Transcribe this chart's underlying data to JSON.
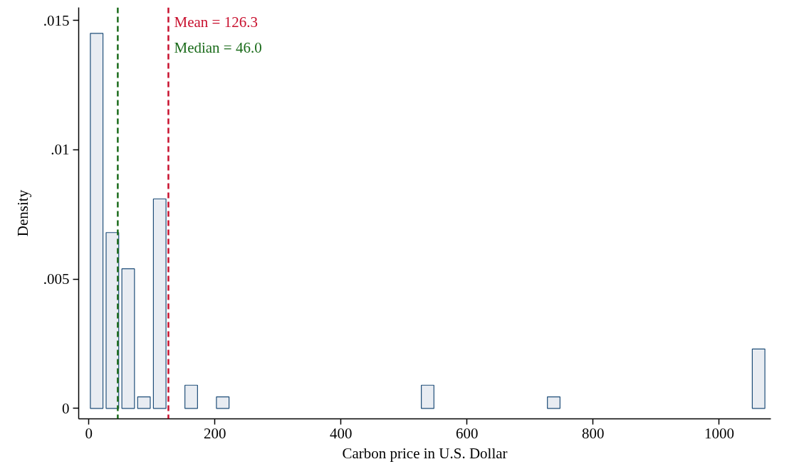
{
  "chart_data": {
    "type": "histogram",
    "xlabel": "Carbon price in U.S. Dollar",
    "ylabel": "Density",
    "bins": [
      0,
      25,
      50,
      75,
      100,
      125,
      150,
      175,
      200,
      225,
      250,
      275,
      300,
      325,
      350,
      375,
      400,
      425,
      450,
      475,
      500,
      525,
      550,
      575,
      600,
      625,
      650,
      675,
      700,
      725,
      750,
      775,
      800,
      825,
      850,
      875,
      900,
      925,
      950,
      975,
      1000,
      1025,
      1050,
      1075
    ],
    "values": [
      0.0145,
      0.0068,
      0.0054,
      0.00045,
      0.0081,
      0,
      0.0009,
      0,
      0.00045,
      0,
      0,
      0,
      0,
      0,
      0,
      0,
      0,
      0,
      0,
      0,
      0,
      0.0009,
      0,
      0,
      0,
      0,
      0,
      0,
      0,
      0.00045,
      0,
      0,
      0,
      0,
      0,
      0,
      0,
      0,
      0,
      0,
      0,
      0,
      0.0023
    ],
    "color": "#e8ecf2",
    "xlim": [
      -16,
      1082
    ],
    "xticks": [
      0,
      200,
      400,
      600,
      800,
      1000
    ],
    "ylim": [
      -0.0004,
      0.0155
    ],
    "yticks": [
      {
        "value": 0,
        "label": "0"
      },
      {
        "value": 0.005,
        "label": ".005"
      },
      {
        "value": 0.01,
        "label": ".01"
      },
      {
        "value": 0.015,
        "label": ".015"
      }
    ],
    "ref_lines": [
      {
        "axis": "x",
        "value": 126.3,
        "label": "Mean = 126.3",
        "color": "#c8102e",
        "line_style": "dashed"
      },
      {
        "axis": "x",
        "value": 46.0,
        "label": "Median = 46.0",
        "color": "#1a6b1a",
        "line_style": "dashed"
      }
    ],
    "grid": false
  }
}
